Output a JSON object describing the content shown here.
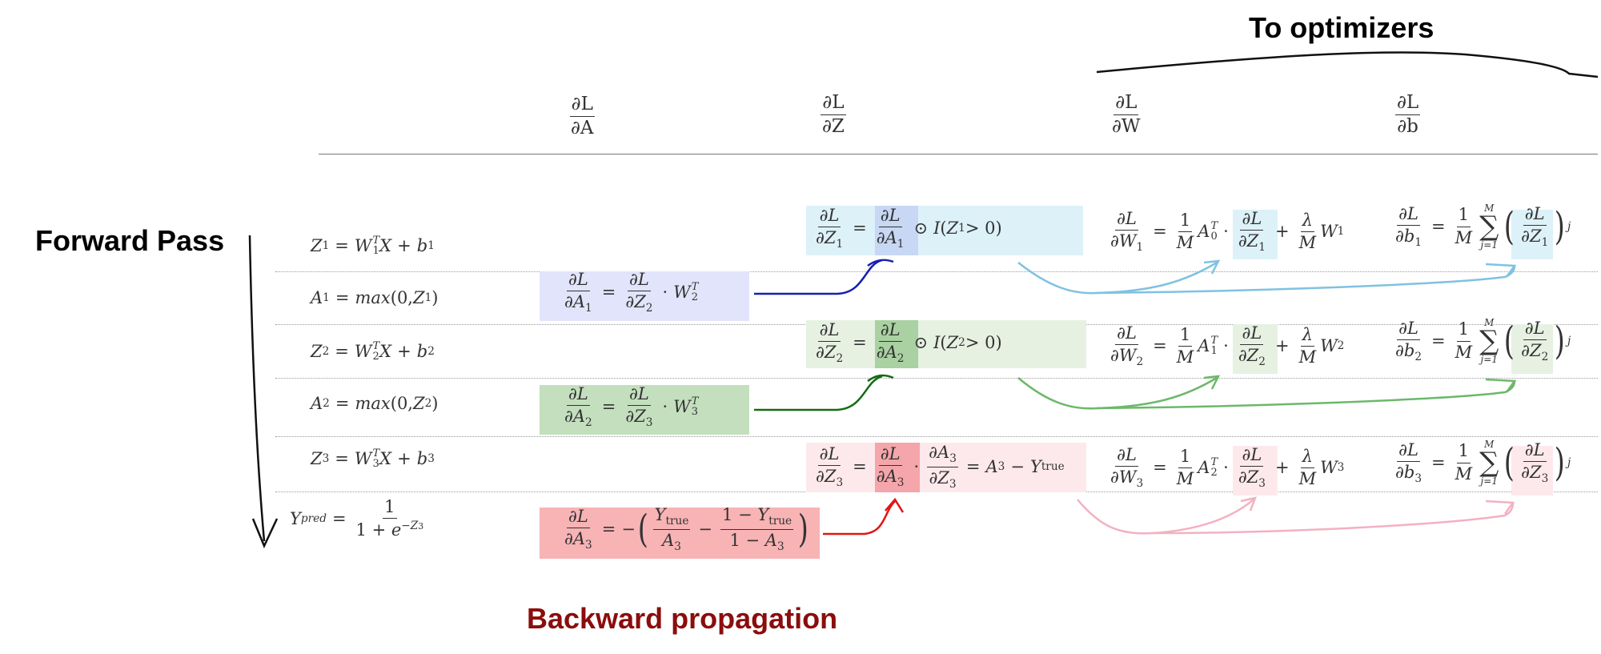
{
  "titles": {
    "to_optimizers": "To optimizers",
    "forward_pass": "Forward Pass",
    "backward_propagation": "Backward propagation"
  },
  "columns": [
    {
      "num": "∂L",
      "den": "∂A"
    },
    {
      "num": "∂L",
      "den": "∂Z"
    },
    {
      "num": "∂L",
      "den": "∂W"
    },
    {
      "num": "∂L",
      "den": "∂b"
    }
  ],
  "colors": {
    "layer1_bg": "#ddf1f9",
    "layer1_dA_bg": "#e2e4fb",
    "layer1_strong": "#c7d7f4",
    "layer2_bg": "#e6f1e2",
    "layer2_dA_bg": "#c3dfbd",
    "layer2_strong": "#a9d1a1",
    "layer3_bg": "#fde9ec",
    "layer3_dA_bg": "#f8b3b5",
    "layer3_strong": "#f4a6aa",
    "arrow_blue_dark": "#1520b0",
    "arrow_blue_light": "#7fc2e2",
    "arrow_green_dark": "#136b13",
    "arrow_green_light": "#6cb86a",
    "arrow_red_dark": "#e01515",
    "arrow_red_light": "#f3b1c1"
  }
}
